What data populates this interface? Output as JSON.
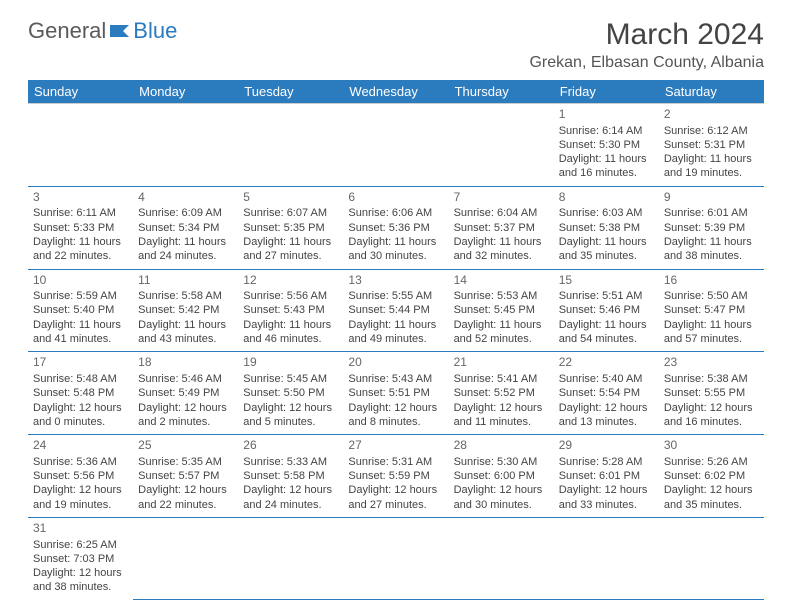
{
  "logo": {
    "general": "General",
    "blue": "Blue"
  },
  "title": "March 2024",
  "location": "Grekan, Elbasan County, Albania",
  "colors": {
    "header_bg": "#2b7bbf",
    "header_text": "#ffffff",
    "rule": "#2b7bbf"
  },
  "weekdays": [
    "Sunday",
    "Monday",
    "Tuesday",
    "Wednesday",
    "Thursday",
    "Friday",
    "Saturday"
  ],
  "weeks": [
    [
      null,
      null,
      null,
      null,
      null,
      {
        "n": "1",
        "sr": "Sunrise: 6:14 AM",
        "ss": "Sunset: 5:30 PM",
        "d1": "Daylight: 11 hours",
        "d2": "and 16 minutes."
      },
      {
        "n": "2",
        "sr": "Sunrise: 6:12 AM",
        "ss": "Sunset: 5:31 PM",
        "d1": "Daylight: 11 hours",
        "d2": "and 19 minutes."
      }
    ],
    [
      {
        "n": "3",
        "sr": "Sunrise: 6:11 AM",
        "ss": "Sunset: 5:33 PM",
        "d1": "Daylight: 11 hours",
        "d2": "and 22 minutes."
      },
      {
        "n": "4",
        "sr": "Sunrise: 6:09 AM",
        "ss": "Sunset: 5:34 PM",
        "d1": "Daylight: 11 hours",
        "d2": "and 24 minutes."
      },
      {
        "n": "5",
        "sr": "Sunrise: 6:07 AM",
        "ss": "Sunset: 5:35 PM",
        "d1": "Daylight: 11 hours",
        "d2": "and 27 minutes."
      },
      {
        "n": "6",
        "sr": "Sunrise: 6:06 AM",
        "ss": "Sunset: 5:36 PM",
        "d1": "Daylight: 11 hours",
        "d2": "and 30 minutes."
      },
      {
        "n": "7",
        "sr": "Sunrise: 6:04 AM",
        "ss": "Sunset: 5:37 PM",
        "d1": "Daylight: 11 hours",
        "d2": "and 32 minutes."
      },
      {
        "n": "8",
        "sr": "Sunrise: 6:03 AM",
        "ss": "Sunset: 5:38 PM",
        "d1": "Daylight: 11 hours",
        "d2": "and 35 minutes."
      },
      {
        "n": "9",
        "sr": "Sunrise: 6:01 AM",
        "ss": "Sunset: 5:39 PM",
        "d1": "Daylight: 11 hours",
        "d2": "and 38 minutes."
      }
    ],
    [
      {
        "n": "10",
        "sr": "Sunrise: 5:59 AM",
        "ss": "Sunset: 5:40 PM",
        "d1": "Daylight: 11 hours",
        "d2": "and 41 minutes."
      },
      {
        "n": "11",
        "sr": "Sunrise: 5:58 AM",
        "ss": "Sunset: 5:42 PM",
        "d1": "Daylight: 11 hours",
        "d2": "and 43 minutes."
      },
      {
        "n": "12",
        "sr": "Sunrise: 5:56 AM",
        "ss": "Sunset: 5:43 PM",
        "d1": "Daylight: 11 hours",
        "d2": "and 46 minutes."
      },
      {
        "n": "13",
        "sr": "Sunrise: 5:55 AM",
        "ss": "Sunset: 5:44 PM",
        "d1": "Daylight: 11 hours",
        "d2": "and 49 minutes."
      },
      {
        "n": "14",
        "sr": "Sunrise: 5:53 AM",
        "ss": "Sunset: 5:45 PM",
        "d1": "Daylight: 11 hours",
        "d2": "and 52 minutes."
      },
      {
        "n": "15",
        "sr": "Sunrise: 5:51 AM",
        "ss": "Sunset: 5:46 PM",
        "d1": "Daylight: 11 hours",
        "d2": "and 54 minutes."
      },
      {
        "n": "16",
        "sr": "Sunrise: 5:50 AM",
        "ss": "Sunset: 5:47 PM",
        "d1": "Daylight: 11 hours",
        "d2": "and 57 minutes."
      }
    ],
    [
      {
        "n": "17",
        "sr": "Sunrise: 5:48 AM",
        "ss": "Sunset: 5:48 PM",
        "d1": "Daylight: 12 hours",
        "d2": "and 0 minutes."
      },
      {
        "n": "18",
        "sr": "Sunrise: 5:46 AM",
        "ss": "Sunset: 5:49 PM",
        "d1": "Daylight: 12 hours",
        "d2": "and 2 minutes."
      },
      {
        "n": "19",
        "sr": "Sunrise: 5:45 AM",
        "ss": "Sunset: 5:50 PM",
        "d1": "Daylight: 12 hours",
        "d2": "and 5 minutes."
      },
      {
        "n": "20",
        "sr": "Sunrise: 5:43 AM",
        "ss": "Sunset: 5:51 PM",
        "d1": "Daylight: 12 hours",
        "d2": "and 8 minutes."
      },
      {
        "n": "21",
        "sr": "Sunrise: 5:41 AM",
        "ss": "Sunset: 5:52 PM",
        "d1": "Daylight: 12 hours",
        "d2": "and 11 minutes."
      },
      {
        "n": "22",
        "sr": "Sunrise: 5:40 AM",
        "ss": "Sunset: 5:54 PM",
        "d1": "Daylight: 12 hours",
        "d2": "and 13 minutes."
      },
      {
        "n": "23",
        "sr": "Sunrise: 5:38 AM",
        "ss": "Sunset: 5:55 PM",
        "d1": "Daylight: 12 hours",
        "d2": "and 16 minutes."
      }
    ],
    [
      {
        "n": "24",
        "sr": "Sunrise: 5:36 AM",
        "ss": "Sunset: 5:56 PM",
        "d1": "Daylight: 12 hours",
        "d2": "and 19 minutes."
      },
      {
        "n": "25",
        "sr": "Sunrise: 5:35 AM",
        "ss": "Sunset: 5:57 PM",
        "d1": "Daylight: 12 hours",
        "d2": "and 22 minutes."
      },
      {
        "n": "26",
        "sr": "Sunrise: 5:33 AM",
        "ss": "Sunset: 5:58 PM",
        "d1": "Daylight: 12 hours",
        "d2": "and 24 minutes."
      },
      {
        "n": "27",
        "sr": "Sunrise: 5:31 AM",
        "ss": "Sunset: 5:59 PM",
        "d1": "Daylight: 12 hours",
        "d2": "and 27 minutes."
      },
      {
        "n": "28",
        "sr": "Sunrise: 5:30 AM",
        "ss": "Sunset: 6:00 PM",
        "d1": "Daylight: 12 hours",
        "d2": "and 30 minutes."
      },
      {
        "n": "29",
        "sr": "Sunrise: 5:28 AM",
        "ss": "Sunset: 6:01 PM",
        "d1": "Daylight: 12 hours",
        "d2": "and 33 minutes."
      },
      {
        "n": "30",
        "sr": "Sunrise: 5:26 AM",
        "ss": "Sunset: 6:02 PM",
        "d1": "Daylight: 12 hours",
        "d2": "and 35 minutes."
      }
    ],
    [
      {
        "n": "31",
        "sr": "Sunrise: 6:25 AM",
        "ss": "Sunset: 7:03 PM",
        "d1": "Daylight: 12 hours",
        "d2": "and 38 minutes."
      },
      null,
      null,
      null,
      null,
      null,
      null
    ]
  ]
}
